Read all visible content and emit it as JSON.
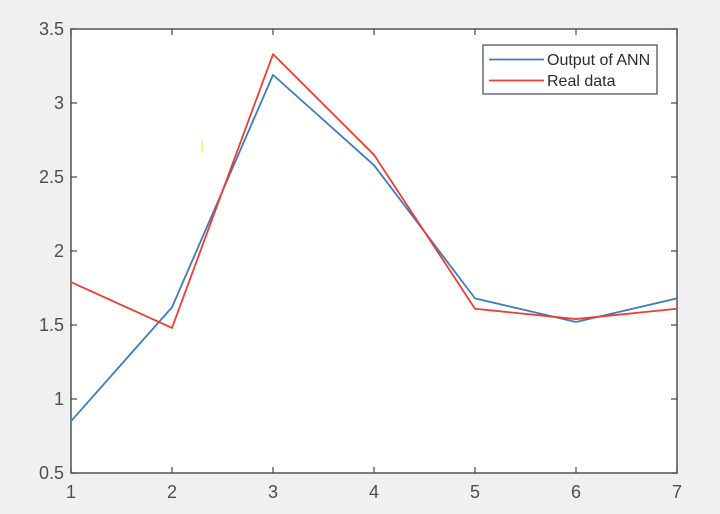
{
  "figure": {
    "background": "#f0f0f1",
    "plot_background": "#ffffff",
    "axis_color": "#474747",
    "tick_label_color": "#4e4e4e",
    "legend_text_color": "#2b2b2b",
    "legend_border_color": "#555555"
  },
  "chart_data": {
    "type": "line",
    "title": "",
    "xlabel": "",
    "ylabel": "",
    "x": [
      1,
      2,
      3,
      4,
      5,
      6,
      7
    ],
    "series": [
      {
        "name": "Output of ANN",
        "color": "#3d7dbf",
        "values": [
          0.85,
          1.62,
          3.19,
          2.58,
          1.68,
          1.52,
          1.68
        ]
      },
      {
        "name": "Real data",
        "color": "#ee3d33",
        "values": [
          1.79,
          1.48,
          3.33,
          2.65,
          1.61,
          1.54,
          1.61
        ]
      }
    ],
    "xlim": [
      1,
      7
    ],
    "ylim": [
      0.5,
      3.5
    ],
    "xticks": [
      1,
      2,
      3,
      4,
      5,
      6,
      7
    ],
    "yticks": [
      0.5,
      1,
      1.5,
      2,
      2.5,
      3,
      3.5
    ],
    "xtick_labels": [
      "1",
      "2",
      "3",
      "4",
      "5",
      "6",
      "7"
    ],
    "ytick_labels": [
      "0.5",
      "1",
      "1.5",
      "2",
      "2.5",
      "3",
      "3.5"
    ],
    "grid": false,
    "box": true,
    "legend": {
      "position": "top-right",
      "entries": [
        "Output of ANN",
        "Real data"
      ]
    }
  },
  "stray_mark": {
    "color": "#f7f29c"
  }
}
